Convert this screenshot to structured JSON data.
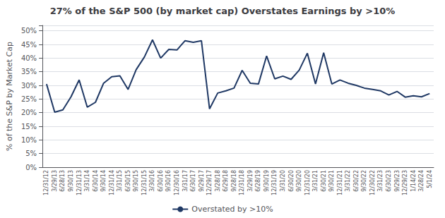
{
  "chart_data": {
    "type": "line",
    "title": "27% of the S&P 500 (by market cap) Overstates Earnings by >10%",
    "ylabel": "% of the S&P by Market Cap",
    "categories": [
      "12/31/12",
      "3/29/13",
      "6/28/13",
      "9/30/13",
      "12/31/13",
      "3/31/14",
      "6/30/14",
      "9/30/14",
      "12/31/14",
      "3/31/15",
      "6/30/15",
      "9/30/15",
      "12/31/15",
      "3/30/16",
      "6/30/16",
      "9/30/16",
      "12/30/16",
      "3/31/17",
      "6/30/17",
      "9/29/17",
      "12/29/17",
      "3/28/18",
      "6/29/18",
      "9/28/18",
      "12/31/18",
      "3/29/19",
      "6/28/19",
      "9/30/19",
      "12/31/19",
      "3/31/20",
      "6/30/20",
      "9/30/20",
      "12/31/20",
      "3/31/21",
      "6/30/21",
      "9/30/21",
      "12/31/21",
      "3/31/22",
      "6/30/22",
      "9/30/22",
      "12/30/22",
      "3/31/23",
      "6/30/23",
      "9/29/23",
      "12/29/23",
      "1/14/24",
      "3/28/24",
      "5/1/24"
    ],
    "series": [
      {
        "name": "Overstated by >10%",
        "color": "#1F3864",
        "values": [
          0.305,
          0.202,
          0.21,
          0.258,
          0.32,
          0.22,
          0.238,
          0.308,
          0.332,
          0.335,
          0.285,
          0.358,
          0.404,
          0.467,
          0.4,
          0.432,
          0.43,
          0.464,
          0.458,
          0.464,
          0.214,
          0.272,
          0.28,
          0.29,
          0.355,
          0.308,
          0.305,
          0.408,
          0.324,
          0.334,
          0.322,
          0.356,
          0.418,
          0.305,
          0.42,
          0.305,
          0.32,
          0.308,
          0.3,
          0.29,
          0.285,
          0.28,
          0.265,
          0.278,
          0.257,
          0.262,
          0.258,
          0.27
        ]
      }
    ],
    "ylim": [
      0,
      0.52
    ],
    "yticks": [
      {
        "value": 0.0,
        "label": "0%"
      },
      {
        "value": 0.05,
        "label": "5%"
      },
      {
        "value": 0.1,
        "label": "10%"
      },
      {
        "value": 0.15,
        "label": "15%"
      },
      {
        "value": 0.2,
        "label": "20%"
      },
      {
        "value": 0.25,
        "label": "25%"
      },
      {
        "value": 0.3,
        "label": "30%"
      },
      {
        "value": 0.35,
        "label": "35%"
      },
      {
        "value": 0.4,
        "label": "40%"
      },
      {
        "value": 0.45,
        "label": "45%"
      },
      {
        "value": 0.5,
        "label": "50%"
      }
    ],
    "grid": true,
    "legend": "bottom"
  }
}
